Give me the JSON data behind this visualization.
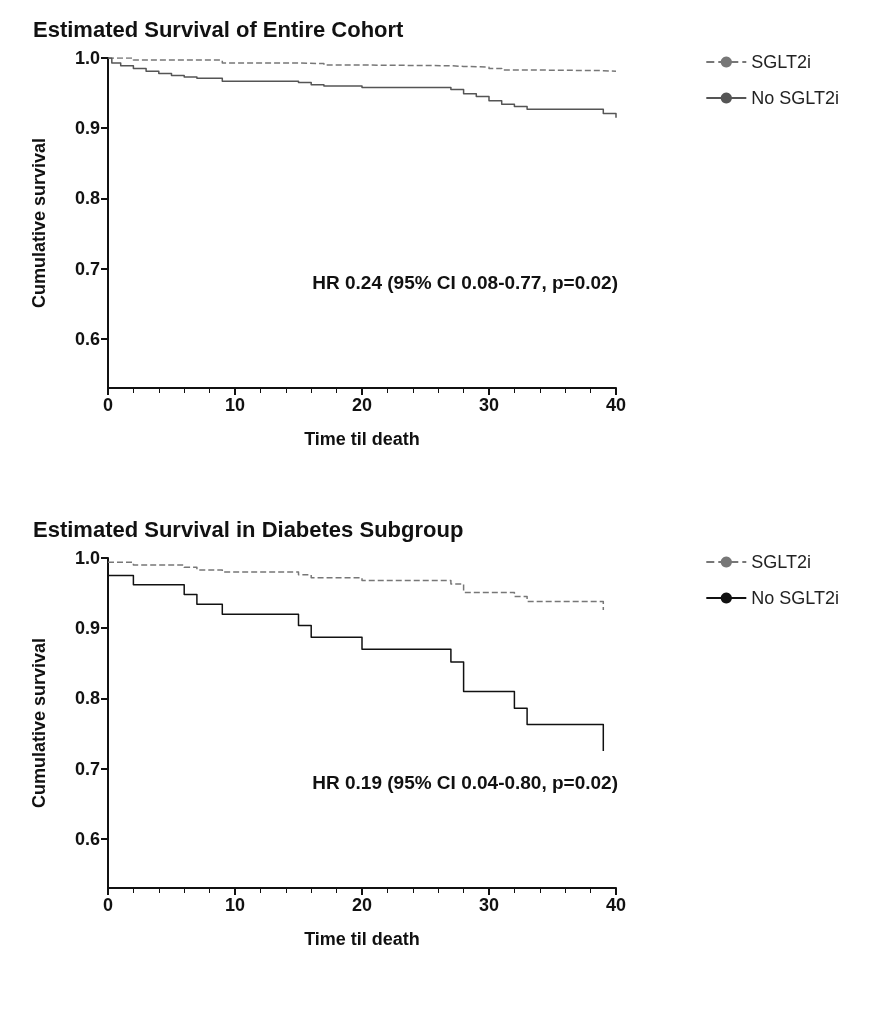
{
  "chart_data": [
    {
      "type": "step",
      "title": "Estimated Survival of Entire Cohort",
      "xlabel": "Time til death",
      "ylabel": "Cumulative survival",
      "annotations": [
        "HR 0.24 (95% CI 0.08-0.77, p=0.02)"
      ],
      "xlim": [
        0,
        40
      ],
      "xticks": [
        0,
        10,
        20,
        30,
        40
      ],
      "ylim": [
        0.53,
        1
      ],
      "yticks": [
        0.6,
        0.7,
        0.8,
        0.9,
        {
          "value": 1,
          "label": "1.0"
        }
      ],
      "legend": "right",
      "marker": "none",
      "grid": false,
      "series": [
        {
          "name": "SGLT2i",
          "color": "#777777",
          "line_style": "dashed",
          "x": [
            0,
            2,
            9,
            15,
            17,
            20,
            27,
            28,
            30,
            31,
            33,
            39,
            40
          ],
          "values": [
            1.0,
            0.997,
            0.993,
            0.992,
            0.99,
            0.989,
            0.988,
            0.987,
            0.985,
            0.983,
            0.982,
            0.981,
            0.98
          ]
        },
        {
          "name": "No SGLT2i",
          "color": "#555555",
          "line_style": "solid",
          "x": [
            0,
            0.3,
            1,
            2,
            3,
            4,
            5,
            6,
            7,
            9,
            15,
            16,
            17,
            20,
            27,
            28,
            29,
            30,
            31,
            32,
            33,
            39,
            40
          ],
          "values": [
            1.0,
            0.993,
            0.989,
            0.985,
            0.981,
            0.978,
            0.975,
            0.973,
            0.971,
            0.967,
            0.965,
            0.962,
            0.96,
            0.958,
            0.955,
            0.949,
            0.945,
            0.939,
            0.934,
            0.931,
            0.927,
            0.921,
            0.915
          ]
        }
      ]
    },
    {
      "type": "step",
      "title": "Estimated Survival in Diabetes Subgroup",
      "xlabel": "Time til death",
      "ylabel": "Cumulative survival",
      "annotations": [
        "HR 0.19 (95% CI 0.04-0.80, p=0.02)"
      ],
      "xlim": [
        0,
        40
      ],
      "xticks": [
        0,
        10,
        20,
        30,
        40
      ],
      "ylim": [
        0.53,
        1
      ],
      "yticks": [
        0.6,
        0.7,
        0.8,
        0.9,
        {
          "value": 1,
          "label": "1.0"
        }
      ],
      "legend": "right",
      "marker": "none",
      "grid": false,
      "series": [
        {
          "name": "SGLT2i",
          "color": "#777777",
          "line_style": "dashed",
          "x": [
            0,
            2,
            6,
            7,
            9,
            15,
            16,
            20,
            27,
            28,
            32,
            33,
            39
          ],
          "values": [
            0.994,
            0.99,
            0.987,
            0.983,
            0.98,
            0.976,
            0.972,
            0.968,
            0.963,
            0.951,
            0.945,
            0.938,
            0.926
          ]
        },
        {
          "name": "No SGLT2i",
          "color": "#111111",
          "line_style": "solid",
          "x": [
            0,
            2,
            6,
            7,
            9,
            15,
            16,
            20,
            27,
            28,
            32,
            33,
            39
          ],
          "values": [
            0.975,
            0.962,
            0.948,
            0.934,
            0.92,
            0.904,
            0.887,
            0.87,
            0.852,
            0.81,
            0.786,
            0.763,
            0.725
          ]
        }
      ]
    }
  ]
}
